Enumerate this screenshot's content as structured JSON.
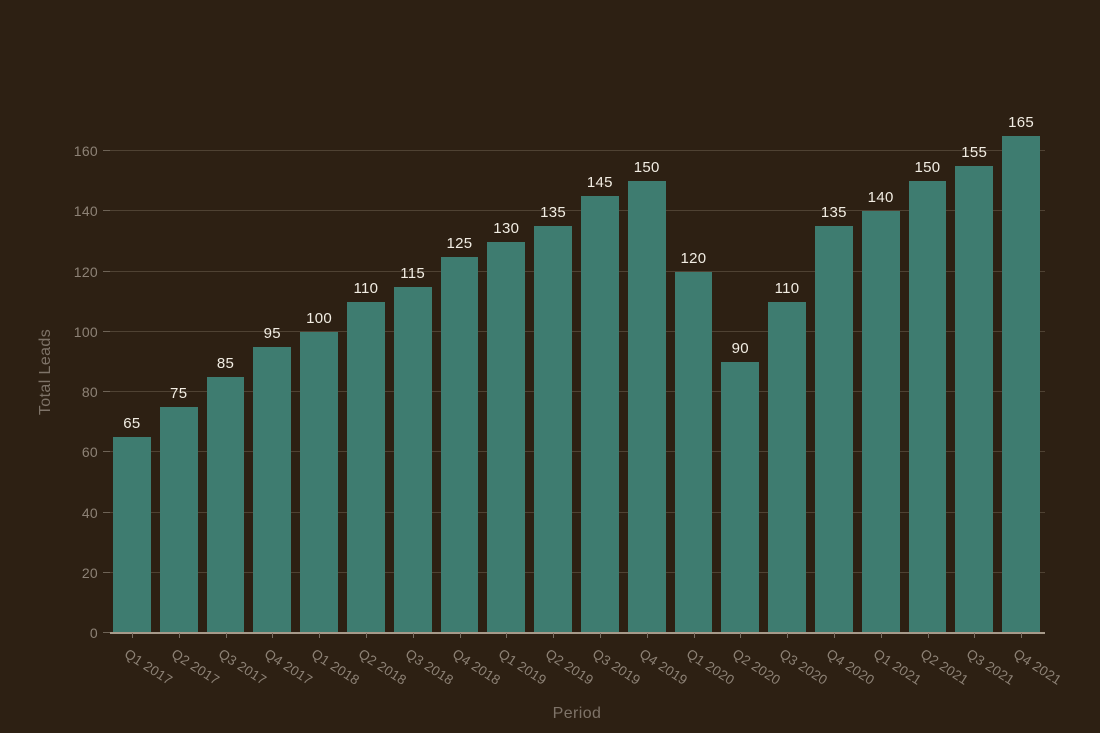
{
  "chart_data": {
    "type": "bar",
    "title": "",
    "xlabel": "Period",
    "ylabel": "Total Leads",
    "categories": [
      "Q1 2017",
      "Q2 2017",
      "Q3 2017",
      "Q4 2017",
      "Q1 2018",
      "Q2 2018",
      "Q3 2018",
      "Q4 2018",
      "Q1 2019",
      "Q2 2019",
      "Q3 2019",
      "Q4 2019",
      "Q1 2020",
      "Q2 2020",
      "Q3 2020",
      "Q4 2020",
      "Q1 2021",
      "Q2 2021",
      "Q3 2021",
      "Q4 2021"
    ],
    "values": [
      65,
      75,
      85,
      95,
      100,
      110,
      115,
      125,
      130,
      135,
      145,
      150,
      120,
      90,
      110,
      135,
      140,
      150,
      155,
      165
    ],
    "yticks": [
      0,
      20,
      40,
      60,
      80,
      100,
      120,
      140,
      160
    ],
    "ylim": [
      0,
      173
    ],
    "grid": true,
    "legend": false,
    "value_labels_shown": true,
    "colors": {
      "background": "#2d2013",
      "bar": "#3e7c70",
      "gridline": "#4f4233",
      "axis_line": "#a79a8a",
      "tick_label": "#8d8276",
      "axis_title": "#7e7368",
      "value_label": "#f2ede3"
    }
  }
}
